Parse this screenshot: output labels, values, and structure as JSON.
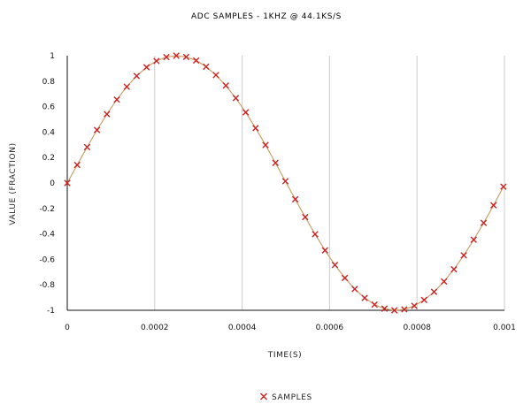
{
  "chart_data": {
    "type": "scatter",
    "title": "ADC SAMPLES - 1kHz @ 44.1kS/s",
    "xlabel": "TIME(S)",
    "ylabel": "VALUE (FRACTION)",
    "xlim": [
      0,
      0.001
    ],
    "ylim": [
      -1,
      1
    ],
    "x_ticks": [
      "0",
      "0.0002",
      "0.0004",
      "0.0006",
      "0.0008",
      "0.001"
    ],
    "y_ticks": [
      "1",
      "0.8",
      "0.6",
      "0.4",
      "0.2",
      "0",
      "-0.2",
      "-0.4",
      "-0.6",
      "-0.8",
      "-1"
    ],
    "grid": "vertical",
    "legend_position": "bottom",
    "series": [
      {
        "name": "SAMPLES",
        "marker": "x",
        "marker_color": "#cc2222",
        "line_color": "#c8a26a",
        "x": [
          0,
          2.27e-05,
          4.54e-05,
          6.8e-05,
          9.07e-05,
          0.0001134,
          0.0001361,
          0.0001587,
          0.0001814,
          0.0002041,
          0.0002268,
          0.0002494,
          0.0002721,
          0.0002948,
          0.0003175,
          0.0003401,
          0.0003628,
          0.0003855,
          0.0004082,
          0.0004308,
          0.0004535,
          0.0004762,
          0.0004989,
          0.0005215,
          0.0005442,
          0.0005669,
          0.0005896,
          0.0006122,
          0.0006349,
          0.0006576,
          0.0006803,
          0.0007029,
          0.0007256,
          0.0007483,
          0.000771,
          0.0007937,
          0.0008163,
          0.000839,
          0.0008617,
          0.0008844,
          0.000907,
          0.0009297,
          0.0009524,
          0.0009751,
          0.0009977
        ],
        "y": [
          0,
          0.142,
          0.282,
          0.416,
          0.541,
          0.655,
          0.756,
          0.841,
          0.909,
          0.959,
          0.989,
          1.0,
          0.99,
          0.962,
          0.914,
          0.848,
          0.765,
          0.667,
          0.555,
          0.431,
          0.298,
          0.158,
          0.014,
          -0.128,
          -0.268,
          -0.402,
          -0.529,
          -0.644,
          -0.746,
          -0.833,
          -0.903,
          -0.955,
          -0.987,
          -1.0,
          -0.993,
          -0.965,
          -0.919,
          -0.855,
          -0.774,
          -0.678,
          -0.568,
          -0.446,
          -0.314,
          -0.175,
          -0.029
        ]
      }
    ]
  }
}
